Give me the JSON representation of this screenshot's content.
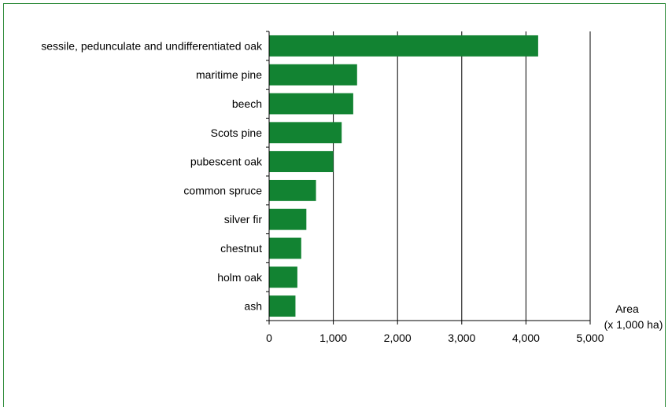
{
  "chart_data": {
    "type": "bar",
    "orientation": "horizontal",
    "categories": [
      "sessile, pedunculate and undifferentiated oak",
      "maritime pine",
      "beech",
      "Scots pine",
      "pubescent oak",
      "common spruce",
      "silver fir",
      "chestnut",
      "holm oak",
      "ash"
    ],
    "values": [
      4190,
      1370,
      1310,
      1130,
      1000,
      730,
      580,
      500,
      440,
      410
    ],
    "xlabel_line1": "Area",
    "xlabel_line2": "(x 1,000 ha)",
    "xlim": [
      0,
      5000
    ],
    "xticks": [
      0,
      1000,
      2000,
      3000,
      4000,
      5000
    ],
    "xtick_labels": [
      "0",
      "1,000",
      "2,000",
      "3,000",
      "4,000",
      "5,000"
    ],
    "grid": "vertical",
    "bar_color": "#128332",
    "frame_color": "#2e8b3a"
  }
}
